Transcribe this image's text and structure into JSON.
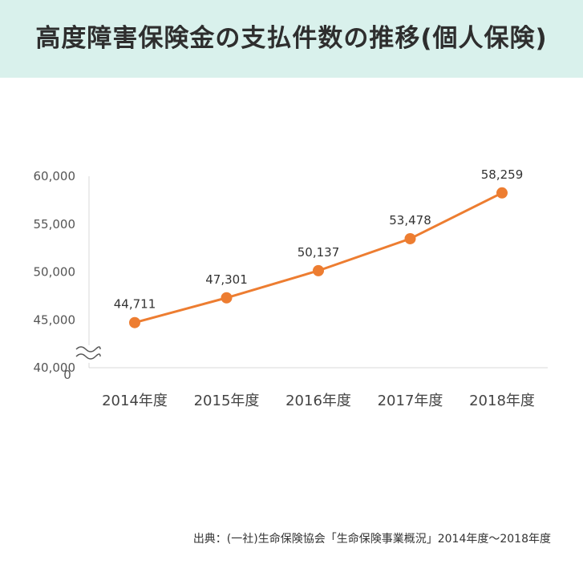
{
  "header": {
    "title": "高度障害保険金の支払件数の推移(個人保険)",
    "bg": "#d9f1ec"
  },
  "chart_data": {
    "type": "line",
    "title": "高度障害保険金の支払件数の推移(個人保険)",
    "categories": [
      "2014年度",
      "2015年度",
      "2016年度",
      "2017年度",
      "2018年度"
    ],
    "series": [
      {
        "values": [
          44711,
          47301,
          50137,
          53478,
          58259
        ],
        "color": "#ed7d31"
      }
    ],
    "data_labels": [
      "44,711",
      "47,301",
      "50,137",
      "53,478",
      "58,259"
    ],
    "ylim": [
      40000,
      60000
    ],
    "yticks": [
      40000,
      45000,
      50000,
      55000,
      60000
    ],
    "ytick_labels": [
      "40,000",
      "45,000",
      "50,000",
      "55,000",
      "60,000"
    ],
    "zero_label": "0",
    "axis_break": true,
    "grid": false,
    "legend": "none",
    "xlabel": "",
    "ylabel": ""
  },
  "source": {
    "text": "出典：(一社)生命保険協会「生命保険事業概況」2014年度〜2018年度"
  }
}
